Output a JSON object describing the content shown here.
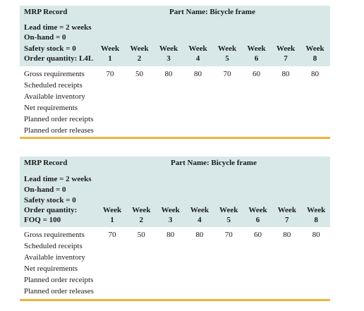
{
  "tables": [
    {
      "title": "MRP Record",
      "part_name": "Part Name: Bicycle frame",
      "params": [
        "Lead time = 2 weeks",
        "On-hand = 0",
        "Safety stock = 0",
        "Order quantity: L4L"
      ],
      "weeks": [
        {
          "label": "Week",
          "num": "1"
        },
        {
          "label": "Week",
          "num": "2"
        },
        {
          "label": "Week",
          "num": "3"
        },
        {
          "label": "Week",
          "num": "4"
        },
        {
          "label": "Week",
          "num": "5"
        },
        {
          "label": "Week",
          "num": "6"
        },
        {
          "label": "Week",
          "num": "7"
        },
        {
          "label": "Week",
          "num": "8"
        }
      ],
      "rows": [
        {
          "label": "Gross requirements",
          "values": [
            "70",
            "50",
            "80",
            "80",
            "70",
            "60",
            "80",
            "80"
          ]
        },
        {
          "label": "Scheduled receipts",
          "values": []
        },
        {
          "label": "Available inventory",
          "values": []
        },
        {
          "label": "Net requirements",
          "values": []
        },
        {
          "label": "Planned order receipts",
          "values": []
        },
        {
          "label": "Planned order releases",
          "values": []
        }
      ]
    },
    {
      "title": "MRP Record",
      "part_name": "Part Name: Bicycle frame",
      "params": [
        "Lead time = 2 weeks",
        "On-hand = 0",
        "Safety stock = 0",
        "Order quantity:",
        "FOQ = 100"
      ],
      "weeks": [
        {
          "label": "Week",
          "num": "1"
        },
        {
          "label": "Week",
          "num": "2"
        },
        {
          "label": "Week",
          "num": "3"
        },
        {
          "label": "Week",
          "num": "4"
        },
        {
          "label": "Week",
          "num": "5"
        },
        {
          "label": "Week",
          "num": "6"
        },
        {
          "label": "Week",
          "num": "7"
        },
        {
          "label": "Week",
          "num": "8"
        }
      ],
      "rows": [
        {
          "label": "Gross requirements",
          "values": [
            "70",
            "50",
            "80",
            "80",
            "70",
            "60",
            "80",
            "80"
          ]
        },
        {
          "label": "Scheduled receipts",
          "values": []
        },
        {
          "label": "Available inventory",
          "values": []
        },
        {
          "label": "Net requirements",
          "values": []
        },
        {
          "label": "Planned order receipts",
          "values": []
        },
        {
          "label": "Planned order releases",
          "values": []
        }
      ],
      "colors": {
        "header_bg": "#d8e8e8",
        "rule": "#f0b43a"
      }
    }
  ]
}
